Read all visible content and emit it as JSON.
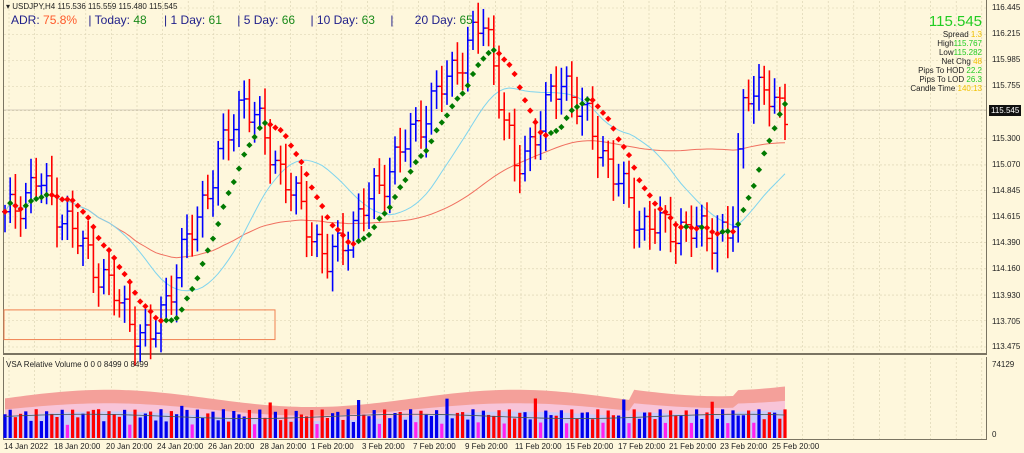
{
  "header": {
    "symbol_line": "USDJPY,H4  115.536 115.559 115.480 115.545",
    "adr_label": "ADR:",
    "adr_value": "75.8%",
    "today_label": "Today:",
    "today_value": "48",
    "day1_label": "1 Day:",
    "day1_value": "61",
    "day5_label": "5 Day:",
    "day5_value": "66",
    "day10_label": "10 Day:",
    "day10_value": "63",
    "day20_label": "20 Day:",
    "day20_value": "65",
    "separator": "|"
  },
  "info_panel": {
    "price": "115.545",
    "spread_label": "Spread",
    "spread_value": "1.3",
    "high_label": "High",
    "high_value": "115.767",
    "low_label": "Low",
    "low_value": "115.282",
    "netchg_label": "Net Chg",
    "netchg_value": "48",
    "pips_hod_label": "Pips To HOD",
    "pips_hod_value": "22.2",
    "pips_lod_label": "Pips To LOD",
    "pips_lod_value": "26.3",
    "candle_time_label": "Candle Time",
    "candle_time_value": "140:13"
  },
  "current_price_tag": "115.545",
  "volume_pane": {
    "title": "VSA Relative Volume 0 0 0 8499 0 8499",
    "axis_max": "74129",
    "axis_min": "0"
  },
  "colors": {
    "background": "#fef7dc",
    "bull_bar": "#0000ff",
    "bear_bar": "#ff0000",
    "trend_up": "#007a00",
    "trend_down": "#ff0000",
    "ma_fast": "#7fd4ee",
    "ma_slow": "#f07060",
    "zone": "#f08050"
  },
  "chart_data": [
    {
      "type": "ohlc",
      "title": "USDJPY,H4",
      "ohlc_last": {
        "open": 115.536,
        "high": 115.559,
        "low": 115.48,
        "close": 115.545
      },
      "y_ticks": [
        "116.445",
        "116.215",
        "115.985",
        "115.755",
        "115.545",
        "115.300",
        "115.070",
        "114.845",
        "114.615",
        "114.390",
        "114.160",
        "113.930",
        "113.705",
        "113.475"
      ],
      "ylim": [
        113.45,
        116.5
      ],
      "x_ticks": [
        "14 Jan 2022",
        "18 Jan 20:00",
        "20 Jan 20:00",
        "24 Jan 20:00",
        "26 Jan 20:00",
        "28 Jan 20:00",
        "1 Feb 20:00",
        "3 Feb 20:00",
        "7 Feb 20:00",
        "9 Feb 20:00",
        "11 Feb 20:00",
        "15 Feb 20:00",
        "17 Feb 20:00",
        "21 Feb 20:00",
        "23 Feb 20:00",
        "25 Feb 20:00"
      ],
      "approx_swings": [
        {
          "label": "14 Jan",
          "price": 114.6
        },
        {
          "label": "17 Jan high",
          "price": 114.95
        },
        {
          "label": "21 Jan low",
          "price": 113.48
        },
        {
          "label": "27 Jan high",
          "price": 115.68
        },
        {
          "label": "1 Feb low",
          "price": 114.2
        },
        {
          "label": "10 Feb high",
          "price": 116.34
        },
        {
          "label": "11 Feb low",
          "price": 115.0
        },
        {
          "label": "15 Feb high",
          "price": 115.85
        },
        {
          "label": "18 Feb low",
          "price": 114.55
        },
        {
          "label": "24 Feb low",
          "price": 114.45
        },
        {
          "label": "24 Feb high",
          "price": 115.8
        },
        {
          "label": "last",
          "price": 115.545
        }
      ],
      "indicators": [
        "Trend dots (green up / red down)",
        "Fast MA (light blue)",
        "Slow MA (salmon)"
      ],
      "demand_zone": {
        "top": 113.8,
        "bottom": 113.54
      }
    },
    {
      "type": "bar",
      "title": "VSA Relative Volume 0 0 0 8499 0 8499",
      "ylim": [
        0,
        74129
      ],
      "series": [
        "bull volume (blue)",
        "bear volume (red)",
        "low volume (magenta)",
        "volume bands (pink/lavender)",
        "average (dark line)"
      ]
    }
  ]
}
